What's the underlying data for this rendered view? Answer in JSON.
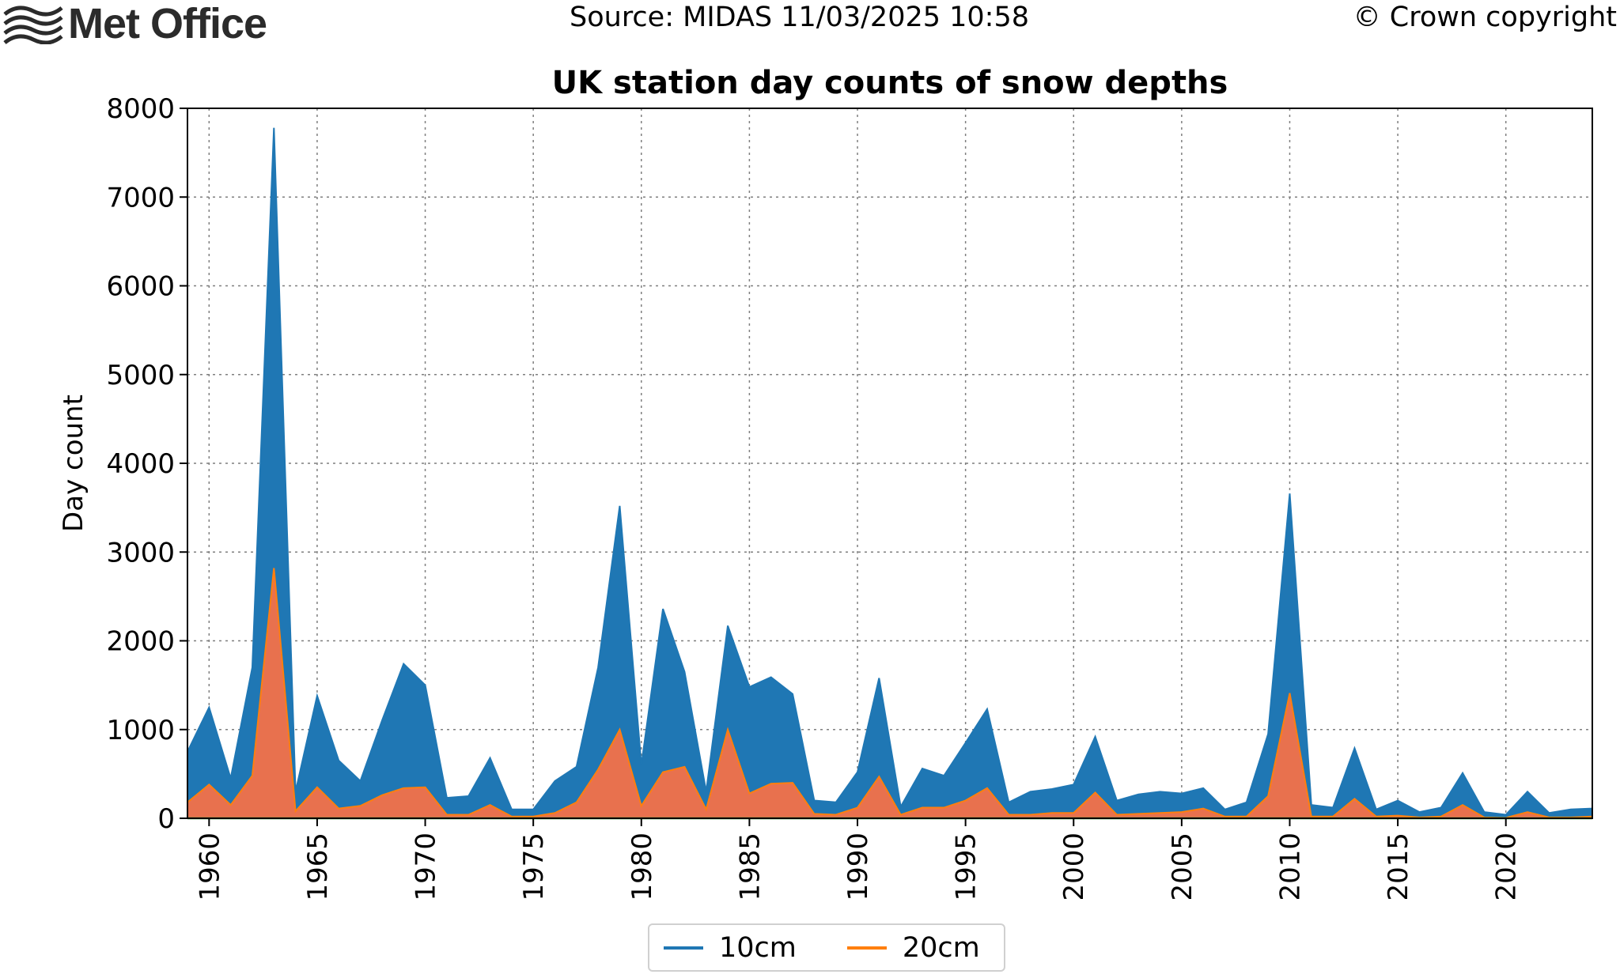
{
  "header": {
    "logo_text": "Met Office",
    "source": "Source: MIDAS 11/03/2025 10:58",
    "copyright": "© Crown copyright"
  },
  "colors": {
    "series_10cm": "#1f77b4",
    "series_20cm": "#ff7f0e",
    "fill_20cm": "#e8714e",
    "baseline": "#2ca02c",
    "grid": "#7f7f7f"
  },
  "chart_data": {
    "type": "area",
    "title": "UK station day counts of snow depths",
    "xlabel": "",
    "ylabel": "Day count",
    "xlim": [
      1959,
      2024
    ],
    "ylim": [
      0,
      8000
    ],
    "xticks": [
      1960,
      1965,
      1970,
      1975,
      1980,
      1985,
      1990,
      1995,
      2000,
      2005,
      2010,
      2015,
      2020
    ],
    "yticks": [
      0,
      1000,
      2000,
      3000,
      4000,
      5000,
      6000,
      7000,
      8000
    ],
    "grid": true,
    "legend_position": "bottom-center",
    "x": [
      1959,
      1960,
      1961,
      1962,
      1963,
      1964,
      1965,
      1966,
      1967,
      1968,
      1969,
      1970,
      1971,
      1972,
      1973,
      1974,
      1975,
      1976,
      1977,
      1978,
      1979,
      1980,
      1981,
      1982,
      1983,
      1984,
      1985,
      1986,
      1987,
      1988,
      1989,
      1990,
      1991,
      1992,
      1993,
      1994,
      1995,
      1996,
      1997,
      1998,
      1999,
      2000,
      2001,
      2002,
      2003,
      2004,
      2005,
      2006,
      2007,
      2008,
      2009,
      2010,
      2011,
      2012,
      2013,
      2014,
      2015,
      2016,
      2017,
      2018,
      2019,
      2020,
      2021,
      2022,
      2023,
      2024
    ],
    "series": [
      {
        "name": "10cm",
        "values": [
          750,
          1250,
          450,
          1700,
          7780,
          300,
          1380,
          650,
          420,
          1100,
          1740,
          1500,
          230,
          250,
          680,
          100,
          100,
          420,
          580,
          1700,
          3520,
          600,
          2360,
          1650,
          300,
          2170,
          1480,
          1590,
          1400,
          200,
          180,
          520,
          1580,
          130,
          560,
          480,
          850,
          1230,
          180,
          300,
          330,
          380,
          920,
          200,
          270,
          300,
          280,
          340,
          100,
          180,
          950,
          3660,
          150,
          120,
          790,
          100,
          200,
          70,
          120,
          510,
          70,
          40,
          300,
          60,
          100,
          110
        ]
      },
      {
        "name": "20cm",
        "values": [
          180,
          380,
          150,
          480,
          2820,
          80,
          350,
          110,
          140,
          260,
          340,
          350,
          40,
          40,
          150,
          20,
          20,
          60,
          180,
          550,
          1000,
          140,
          520,
          580,
          100,
          1000,
          280,
          390,
          400,
          50,
          40,
          120,
          470,
          40,
          120,
          120,
          200,
          340,
          40,
          40,
          60,
          60,
          290,
          40,
          50,
          60,
          70,
          110,
          20,
          20,
          250,
          1410,
          20,
          20,
          220,
          20,
          30,
          10,
          20,
          150,
          10,
          5,
          70,
          10,
          10,
          20
        ]
      }
    ]
  },
  "legend": {
    "items": [
      {
        "label": "10cm"
      },
      {
        "label": "20cm"
      }
    ]
  }
}
